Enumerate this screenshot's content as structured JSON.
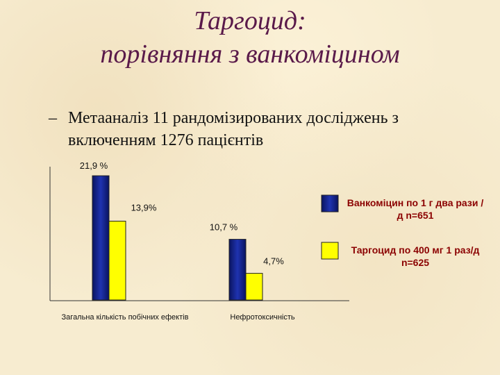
{
  "title_line1": "Таргоцид:",
  "title_line2": "порівняння з ванкоміцином",
  "bullet": {
    "dash": "–",
    "text": "Метааналіз 11 рандомізированих досліджень з включенням 1276 пацієнтів"
  },
  "colors": {
    "series1": "#1f33b0",
    "series2": "#ffff00",
    "title": "#5a1a4a",
    "legend_text": "#8b0000"
  },
  "chart_data": {
    "type": "bar",
    "categories": [
      "Загальна кількість побічних ефектів",
      "Нефротоксичність"
    ],
    "series": [
      {
        "name": "Ванкоміцин по 1 г два рази /д n=651",
        "values": [
          21.9,
          10.7
        ],
        "labels": [
          "21,9 %",
          "10,7 %"
        ]
      },
      {
        "name": "Таргоцид по 400 мг 1 раз/д n=625",
        "values": [
          13.9,
          4.7
        ],
        "labels": [
          "13,9%",
          "4,7%"
        ]
      }
    ],
    "ylim": [
      0,
      23.5
    ],
    "grid": false,
    "legend_position": "right"
  }
}
